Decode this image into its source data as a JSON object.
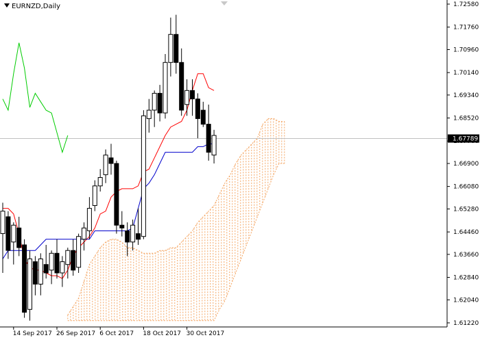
{
  "chart": {
    "symbol": "EURNZD,Daily",
    "current_price": "1.67789"
  },
  "chart_data": {
    "type": "candlestick",
    "title": "EURNZD,Daily",
    "y_ticks": [
      "1.72580",
      "1.71760",
      "1.70960",
      "1.70140",
      "1.69340",
      "1.68520",
      "1.67700",
      "1.66900",
      "1.66080",
      "1.65280",
      "1.64460",
      "1.63660",
      "1.62840",
      "1.62040",
      "1.61220"
    ],
    "ylim": [
      1.6122,
      1.7258
    ],
    "x_ticks": [
      {
        "label": "14 Sep 2017",
        "index": 2
      },
      {
        "label": "26 Sep 2017",
        "index": 10
      },
      {
        "label": "6 Oct 2017",
        "index": 18
      },
      {
        "label": "18 Oct 2017",
        "index": 26
      },
      {
        "label": "30 Oct 2017",
        "index": 34
      }
    ],
    "current_price": 1.67789,
    "candles": [
      {
        "o": 1.644,
        "h": 1.655,
        "l": 1.63,
        "c": 1.652
      },
      {
        "o": 1.65,
        "h": 1.652,
        "l": 1.635,
        "c": 1.638
      },
      {
        "o": 1.641,
        "h": 1.648,
        "l": 1.633,
        "c": 1.647
      },
      {
        "o": 1.646,
        "h": 1.65,
        "l": 1.636,
        "c": 1.639
      },
      {
        "o": 1.64,
        "h": 1.642,
        "l": 1.614,
        "c": 1.616
      },
      {
        "o": 1.617,
        "h": 1.638,
        "l": 1.613,
        "c": 1.635
      },
      {
        "o": 1.634,
        "h": 1.636,
        "l": 1.622,
        "c": 1.626
      },
      {
        "o": 1.626,
        "h": 1.637,
        "l": 1.622,
        "c": 1.635
      },
      {
        "o": 1.633,
        "h": 1.64,
        "l": 1.628,
        "c": 1.63
      },
      {
        "o": 1.631,
        "h": 1.638,
        "l": 1.626,
        "c": 1.637
      },
      {
        "o": 1.637,
        "h": 1.642,
        "l": 1.628,
        "c": 1.63
      },
      {
        "o": 1.63,
        "h": 1.636,
        "l": 1.625,
        "c": 1.634
      },
      {
        "o": 1.633,
        "h": 1.639,
        "l": 1.628,
        "c": 1.638
      },
      {
        "o": 1.638,
        "h": 1.642,
        "l": 1.629,
        "c": 1.631
      },
      {
        "o": 1.632,
        "h": 1.644,
        "l": 1.63,
        "c": 1.643
      },
      {
        "o": 1.642,
        "h": 1.648,
        "l": 1.638,
        "c": 1.646
      },
      {
        "o": 1.645,
        "h": 1.657,
        "l": 1.642,
        "c": 1.653
      },
      {
        "o": 1.654,
        "h": 1.663,
        "l": 1.652,
        "c": 1.661
      },
      {
        "o": 1.661,
        "h": 1.667,
        "l": 1.659,
        "c": 1.664
      },
      {
        "o": 1.665,
        "h": 1.674,
        "l": 1.662,
        "c": 1.672
      },
      {
        "o": 1.671,
        "h": 1.676,
        "l": 1.665,
        "c": 1.669
      },
      {
        "o": 1.669,
        "h": 1.67,
        "l": 1.644,
        "c": 1.647
      },
      {
        "o": 1.647,
        "h": 1.652,
        "l": 1.643,
        "c": 1.646
      },
      {
        "o": 1.645,
        "h": 1.648,
        "l": 1.636,
        "c": 1.641
      },
      {
        "o": 1.641,
        "h": 1.649,
        "l": 1.638,
        "c": 1.647
      },
      {
        "o": 1.644,
        "h": 1.653,
        "l": 1.64,
        "c": 1.642
      },
      {
        "o": 1.643,
        "h": 1.688,
        "l": 1.642,
        "c": 1.686
      },
      {
        "o": 1.685,
        "h": 1.692,
        "l": 1.68,
        "c": 1.688
      },
      {
        "o": 1.688,
        "h": 1.695,
        "l": 1.682,
        "c": 1.694
      },
      {
        "o": 1.694,
        "h": 1.697,
        "l": 1.684,
        "c": 1.687
      },
      {
        "o": 1.687,
        "h": 1.708,
        "l": 1.685,
        "c": 1.705
      },
      {
        "o": 1.705,
        "h": 1.721,
        "l": 1.7,
        "c": 1.715
      },
      {
        "o": 1.715,
        "h": 1.722,
        "l": 1.701,
        "c": 1.705
      },
      {
        "o": 1.705,
        "h": 1.71,
        "l": 1.686,
        "c": 1.688
      },
      {
        "o": 1.69,
        "h": 1.699,
        "l": 1.686,
        "c": 1.695
      },
      {
        "o": 1.695,
        "h": 1.699,
        "l": 1.686,
        "c": 1.692
      },
      {
        "o": 1.692,
        "h": 1.694,
        "l": 1.678,
        "c": 1.685
      },
      {
        "o": 1.688,
        "h": 1.691,
        "l": 1.682,
        "c": 1.683
      },
      {
        "o": 1.683,
        "h": 1.69,
        "l": 1.67,
        "c": 1.673
      },
      {
        "o": 1.672,
        "h": 1.681,
        "l": 1.669,
        "c": 1.679
      }
    ],
    "tenkan": [
      1.653,
      1.653,
      1.651,
      1.644,
      1.635,
      1.632,
      1.631,
      1.631,
      1.63,
      1.629,
      1.629,
      1.628,
      1.631,
      1.636,
      1.639,
      1.641,
      1.643,
      1.646,
      1.651,
      1.652,
      1.657,
      1.659,
      1.66,
      1.66,
      1.66,
      1.661,
      1.666,
      1.667,
      1.671,
      1.675,
      1.679,
      1.682,
      1.683,
      1.684,
      1.688,
      1.695,
      1.701,
      1.701,
      1.696,
      1.695
    ],
    "kijun": [
      1.635,
      1.638,
      1.638,
      1.638,
      1.638,
      1.638,
      1.638,
      1.64,
      1.642,
      1.642,
      1.642,
      1.642,
      1.642,
      1.642,
      1.642,
      1.642,
      1.642,
      1.645,
      1.645,
      1.645,
      1.645,
      1.645,
      1.645,
      1.645,
      1.646,
      1.653,
      1.66,
      1.662,
      1.665,
      1.669,
      1.673,
      1.673,
      1.673,
      1.673,
      1.673,
      1.673,
      1.675,
      1.675,
      1.676,
      1.676
    ],
    "chikou": [
      {
        "index": 0,
        "value": 1.692
      },
      {
        "index": 1,
        "value": 1.688
      },
      {
        "index": 2,
        "value": 1.701
      },
      {
        "index": 3,
        "value": 1.712
      },
      {
        "index": 4,
        "value": 1.703
      },
      {
        "index": 5,
        "value": 1.689
      },
      {
        "index": 6,
        "value": 1.694
      },
      {
        "index": 7,
        "value": 1.691
      },
      {
        "index": 8,
        "value": 1.688
      },
      {
        "index": 9,
        "value": 1.687
      },
      {
        "index": 10,
        "value": 1.68
      },
      {
        "index": 11,
        "value": 1.673
      },
      {
        "index": 12,
        "value": 1.679
      }
    ],
    "cloud": [
      {
        "index": 12,
        "a": 1.615,
        "b": 1.613
      },
      {
        "index": 13,
        "a": 1.618,
        "b": 1.613
      },
      {
        "index": 14,
        "a": 1.621,
        "b": 1.613
      },
      {
        "index": 15,
        "a": 1.627,
        "b": 1.613
      },
      {
        "index": 16,
        "a": 1.633,
        "b": 1.613
      },
      {
        "index": 17,
        "a": 1.636,
        "b": 1.613
      },
      {
        "index": 18,
        "a": 1.639,
        "b": 1.613
      },
      {
        "index": 19,
        "a": 1.641,
        "b": 1.613
      },
      {
        "index": 20,
        "a": 1.642,
        "b": 1.613
      },
      {
        "index": 21,
        "a": 1.642,
        "b": 1.613
      },
      {
        "index": 22,
        "a": 1.641,
        "b": 1.613
      },
      {
        "index": 23,
        "a": 1.639,
        "b": 1.613
      },
      {
        "index": 24,
        "a": 1.639,
        "b": 1.613
      },
      {
        "index": 25,
        "a": 1.638,
        "b": 1.613
      },
      {
        "index": 26,
        "a": 1.637,
        "b": 1.613
      },
      {
        "index": 27,
        "a": 1.637,
        "b": 1.613
      },
      {
        "index": 28,
        "a": 1.637,
        "b": 1.613
      },
      {
        "index": 29,
        "a": 1.638,
        "b": 1.613
      },
      {
        "index": 30,
        "a": 1.638,
        "b": 1.613
      },
      {
        "index": 31,
        "a": 1.639,
        "b": 1.613
      },
      {
        "index": 32,
        "a": 1.639,
        "b": 1.613
      },
      {
        "index": 33,
        "a": 1.641,
        "b": 1.613
      },
      {
        "index": 34,
        "a": 1.643,
        "b": 1.613
      },
      {
        "index": 35,
        "a": 1.645,
        "b": 1.613
      },
      {
        "index": 36,
        "a": 1.648,
        "b": 1.613
      },
      {
        "index": 37,
        "a": 1.65,
        "b": 1.613
      },
      {
        "index": 38,
        "a": 1.652,
        "b": 1.613
      },
      {
        "index": 39,
        "a": 1.654,
        "b": 1.613
      },
      {
        "index": 40,
        "a": 1.658,
        "b": 1.617
      },
      {
        "index": 41,
        "a": 1.662,
        "b": 1.62
      },
      {
        "index": 42,
        "a": 1.665,
        "b": 1.625
      },
      {
        "index": 43,
        "a": 1.669,
        "b": 1.63
      },
      {
        "index": 44,
        "a": 1.672,
        "b": 1.635
      },
      {
        "index": 45,
        "a": 1.674,
        "b": 1.64
      },
      {
        "index": 46,
        "a": 1.676,
        "b": 1.645
      },
      {
        "index": 47,
        "a": 1.678,
        "b": 1.65
      },
      {
        "index": 48,
        "a": 1.683,
        "b": 1.655
      },
      {
        "index": 49,
        "a": 1.685,
        "b": 1.66
      },
      {
        "index": 50,
        "a": 1.685,
        "b": 1.665
      },
      {
        "index": 51,
        "a": 1.684,
        "b": 1.669
      },
      {
        "index": 52,
        "a": 1.684,
        "b": 1.669
      }
    ],
    "colors": {
      "bull": "#ffffff",
      "bear": "#000000",
      "tenkan": "#ff0000",
      "kijun": "#0000cc",
      "chikou": "#00cc00",
      "cloud": "#f4a460",
      "price_line": "#c0c0c0",
      "axis": "#000000"
    }
  }
}
